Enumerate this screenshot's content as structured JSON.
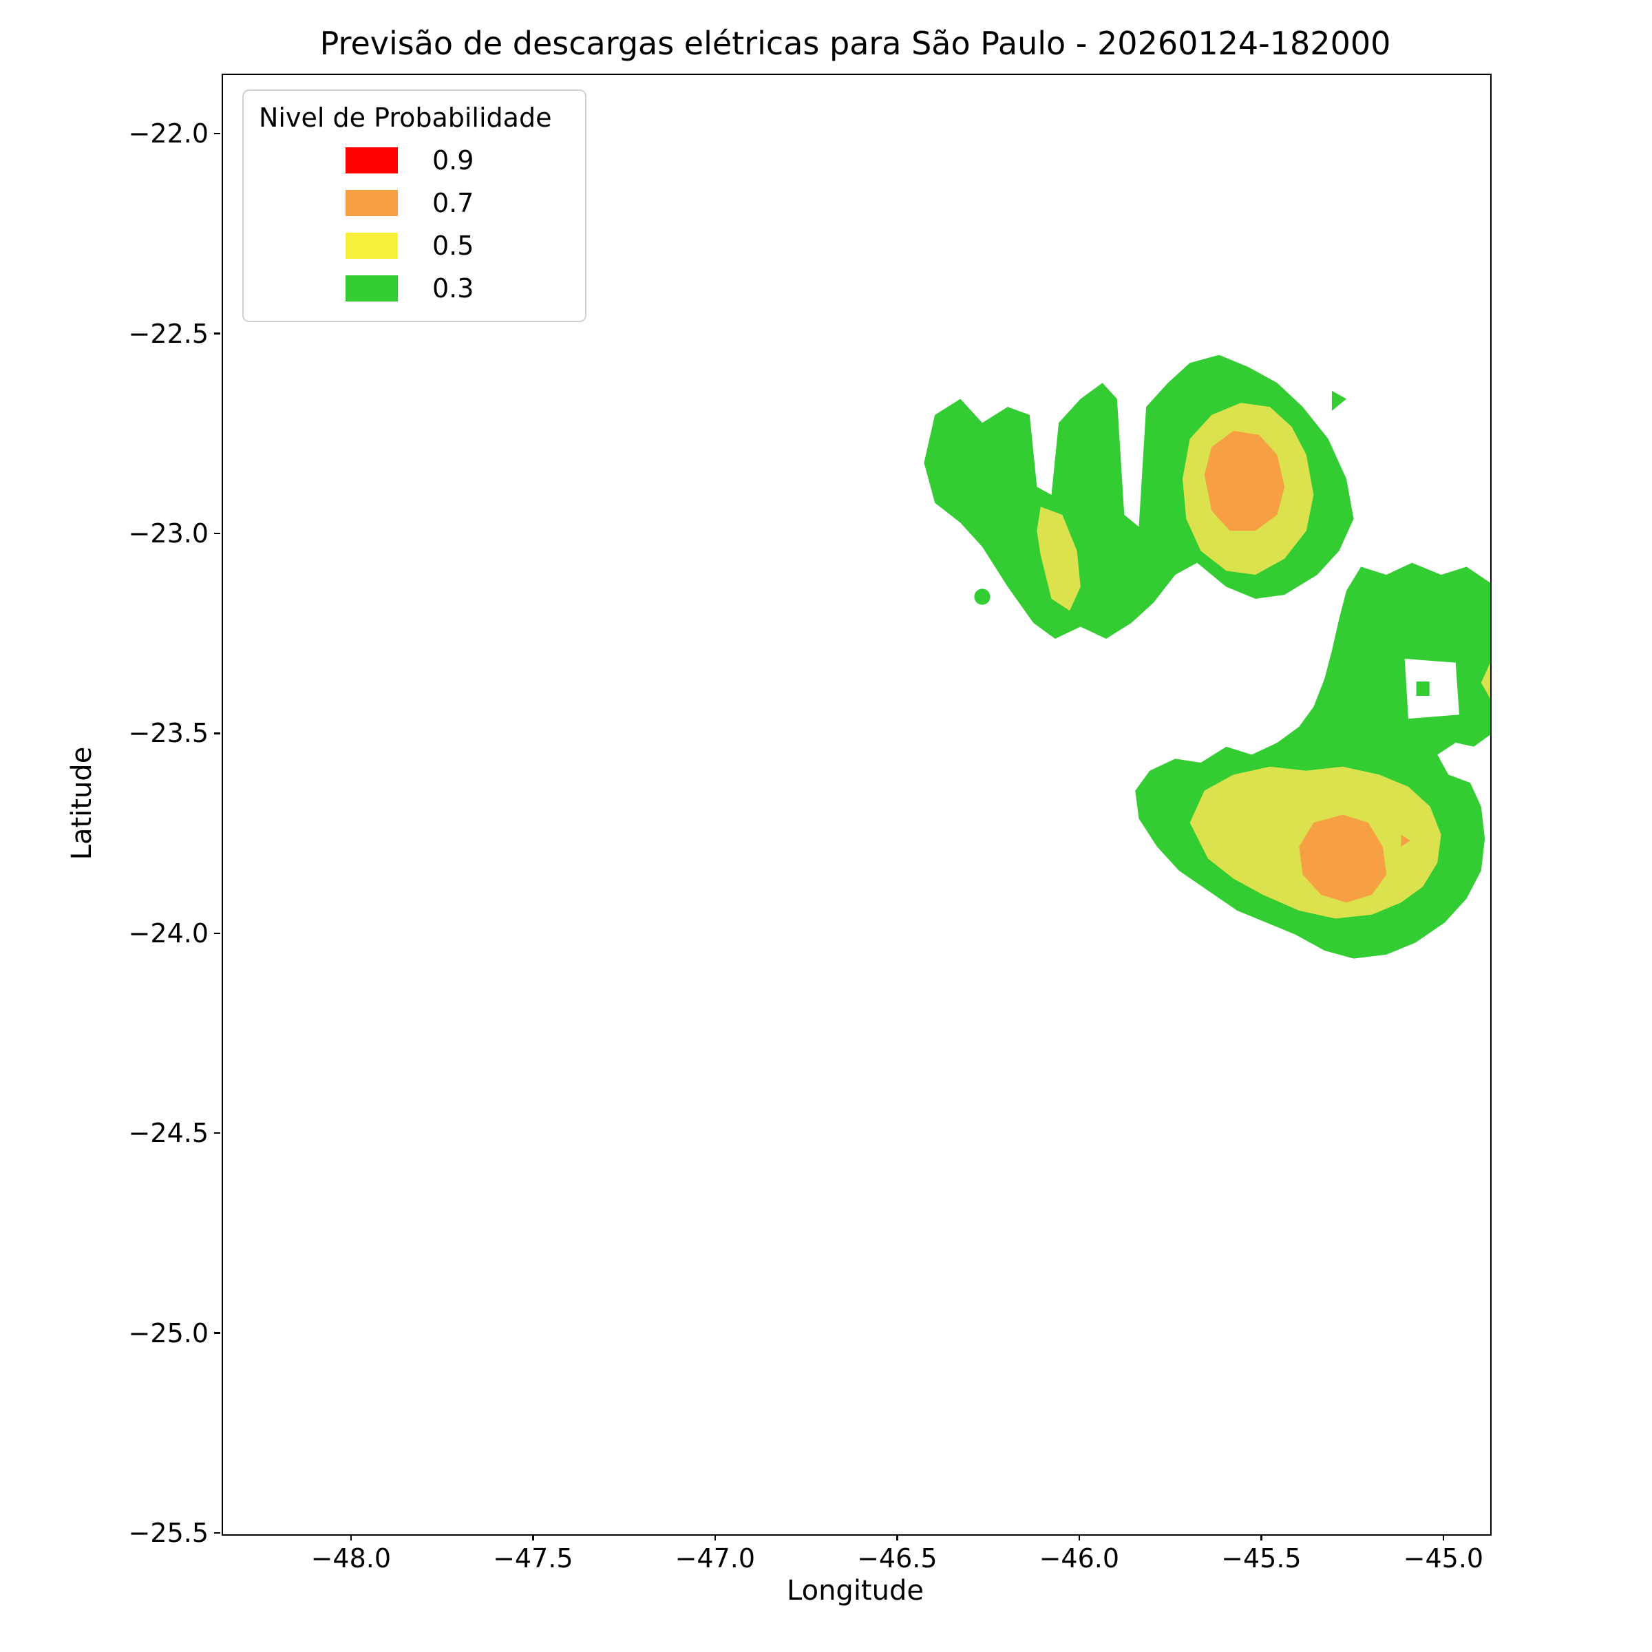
{
  "chart_data": {
    "type": "filled_contour_map",
    "title": "Previsão de descargas elétricas para São Paulo - 20260124-182000",
    "xlabel": "Longitude",
    "ylabel": "Latitude",
    "xlim": [
      -48.355,
      -44.875
    ],
    "ylim": [
      -25.5,
      -21.85
    ],
    "xticks": [
      -48.0,
      -47.5,
      -47.0,
      -46.5,
      -46.0,
      -45.5,
      -45.0
    ],
    "xtick_labels": [
      "−48.0",
      "−47.5",
      "−47.0",
      "−46.5",
      "−46.0",
      "−45.5",
      "−45.0"
    ],
    "yticks": [
      -22.0,
      -22.5,
      -23.0,
      -23.5,
      -24.0,
      -24.5,
      -25.0,
      -25.5
    ],
    "ytick_labels": [
      "−22.0",
      "−22.5",
      "−23.0",
      "−23.5",
      "−24.0",
      "−24.5",
      "−25.0",
      "−25.5"
    ],
    "grid": false,
    "levels": [
      0.3,
      0.5,
      0.7,
      0.9
    ],
    "legend": {
      "title": "Nivel de Probabilidade",
      "position": "upper left",
      "entries": [
        {
          "label": "0.9",
          "color": "#FF0000"
        },
        {
          "label": "0.7",
          "color": "#F7A043"
        },
        {
          "label": "0.5",
          "color": "#F9F03C"
        },
        {
          "label": "0.3",
          "color": "#33CC33"
        }
      ]
    },
    "regions": [
      {
        "name": "north-cluster-green",
        "level": 0.3,
        "color": "#33CC33",
        "rings": [
          [
            [
              -46.43,
              -22.82
            ],
            [
              -46.4,
              -22.7
            ],
            [
              -46.33,
              -22.66
            ],
            [
              -46.27,
              -22.72
            ],
            [
              -46.2,
              -22.68
            ],
            [
              -46.14,
              -22.7
            ],
            [
              -46.12,
              -22.88
            ],
            [
              -46.08,
              -22.9
            ],
            [
              -46.06,
              -22.72
            ],
            [
              -46.0,
              -22.66
            ],
            [
              -45.94,
              -22.62
            ],
            [
              -45.9,
              -22.66
            ],
            [
              -45.88,
              -22.95
            ],
            [
              -45.84,
              -22.98
            ],
            [
              -45.82,
              -22.68
            ],
            [
              -45.76,
              -22.62
            ],
            [
              -45.7,
              -22.57
            ],
            [
              -45.62,
              -22.55
            ],
            [
              -45.54,
              -22.58
            ],
            [
              -45.46,
              -22.62
            ],
            [
              -45.39,
              -22.68
            ],
            [
              -45.32,
              -22.76
            ],
            [
              -45.27,
              -22.86
            ],
            [
              -45.25,
              -22.96
            ],
            [
              -45.29,
              -23.04
            ],
            [
              -45.35,
              -23.1
            ],
            [
              -45.44,
              -23.15
            ],
            [
              -45.52,
              -23.16
            ],
            [
              -45.6,
              -23.13
            ],
            [
              -45.68,
              -23.07
            ],
            [
              -45.74,
              -23.1
            ],
            [
              -45.8,
              -23.17
            ],
            [
              -45.86,
              -23.22
            ],
            [
              -45.93,
              -23.26
            ],
            [
              -46.0,
              -23.23
            ],
            [
              -46.07,
              -23.26
            ],
            [
              -46.13,
              -23.22
            ],
            [
              -46.2,
              -23.13
            ],
            [
              -46.27,
              -23.03
            ],
            [
              -46.33,
              -22.97
            ],
            [
              -46.4,
              -22.92
            ]
          ]
        ]
      },
      {
        "name": "north-green-dot",
        "level": 0.3,
        "color": "#33CC33",
        "type": "circle",
        "center": [
          -46.27,
          -23.155
        ],
        "r_deg": 0.022
      },
      {
        "name": "north-green-triangle",
        "level": 0.3,
        "color": "#33CC33",
        "rings": [
          [
            [
              -45.31,
              -22.64
            ],
            [
              -45.27,
              -22.66
            ],
            [
              -45.31,
              -22.69
            ]
          ]
        ]
      },
      {
        "name": "north-yellow-left-sliver",
        "level": 0.5,
        "color": "#DCE24D",
        "rings": [
          [
            [
              -46.11,
              -22.93
            ],
            [
              -46.05,
              -22.95
            ],
            [
              -46.01,
              -23.04
            ],
            [
              -46.0,
              -23.13
            ],
            [
              -46.03,
              -23.19
            ],
            [
              -46.08,
              -23.16
            ],
            [
              -46.11,
              -23.05
            ],
            [
              -46.12,
              -22.99
            ]
          ]
        ]
      },
      {
        "name": "north-yellow-main",
        "level": 0.5,
        "color": "#DCE24D",
        "rings": [
          [
            [
              -45.72,
              -22.86
            ],
            [
              -45.7,
              -22.76
            ],
            [
              -45.64,
              -22.7
            ],
            [
              -45.56,
              -22.67
            ],
            [
              -45.48,
              -22.68
            ],
            [
              -45.42,
              -22.73
            ],
            [
              -45.38,
              -22.8
            ],
            [
              -45.36,
              -22.9
            ],
            [
              -45.38,
              -22.99
            ],
            [
              -45.44,
              -23.06
            ],
            [
              -45.52,
              -23.1
            ],
            [
              -45.6,
              -23.09
            ],
            [
              -45.67,
              -23.04
            ],
            [
              -45.71,
              -22.96
            ]
          ]
        ]
      },
      {
        "name": "north-orange-core",
        "level": 0.7,
        "color": "#F7A043",
        "rings": [
          [
            [
              -45.66,
              -22.85
            ],
            [
              -45.64,
              -22.78
            ],
            [
              -45.58,
              -22.74
            ],
            [
              -45.51,
              -22.75
            ],
            [
              -45.46,
              -22.8
            ],
            [
              -45.44,
              -22.88
            ],
            [
              -45.46,
              -22.95
            ],
            [
              -45.52,
              -22.99
            ],
            [
              -45.59,
              -22.99
            ],
            [
              -45.64,
              -22.94
            ]
          ]
        ]
      },
      {
        "name": "south-cluster-green",
        "level": 0.3,
        "color": "#33CC33",
        "rings": [
          [
            [
              -45.27,
              -23.14
            ],
            [
              -45.23,
              -23.08
            ],
            [
              -45.16,
              -23.1
            ],
            [
              -45.09,
              -23.07
            ],
            [
              -45.01,
              -23.1
            ],
            [
              -44.94,
              -23.08
            ],
            [
              -44.875,
              -23.12
            ],
            [
              -44.875,
              -23.5
            ],
            [
              -44.92,
              -23.53
            ],
            [
              -44.97,
              -23.52
            ],
            [
              -45.02,
              -23.55
            ],
            [
              -44.99,
              -23.6
            ],
            [
              -44.93,
              -23.62
            ],
            [
              -44.9,
              -23.68
            ],
            [
              -44.89,
              -23.76
            ],
            [
              -44.9,
              -23.84
            ],
            [
              -44.94,
              -23.91
            ],
            [
              -45.0,
              -23.97
            ],
            [
              -45.08,
              -24.02
            ],
            [
              -45.16,
              -24.05
            ],
            [
              -45.25,
              -24.06
            ],
            [
              -45.33,
              -24.04
            ],
            [
              -45.41,
              -24.0
            ],
            [
              -45.49,
              -23.97
            ],
            [
              -45.57,
              -23.94
            ],
            [
              -45.65,
              -23.89
            ],
            [
              -45.73,
              -23.84
            ],
            [
              -45.79,
              -23.78
            ],
            [
              -45.84,
              -23.71
            ],
            [
              -45.85,
              -23.64
            ],
            [
              -45.81,
              -23.59
            ],
            [
              -45.74,
              -23.56
            ],
            [
              -45.67,
              -23.57
            ],
            [
              -45.6,
              -23.53
            ],
            [
              -45.53,
              -23.55
            ],
            [
              -45.46,
              -23.52
            ],
            [
              -45.4,
              -23.48
            ],
            [
              -45.36,
              -23.43
            ],
            [
              -45.33,
              -23.36
            ],
            [
              -45.31,
              -23.29
            ],
            [
              -45.29,
              -23.21
            ]
          ],
          [
            [
              -45.11,
              -23.31
            ],
            [
              -44.97,
              -23.32
            ],
            [
              -44.96,
              -23.45
            ],
            [
              -45.1,
              -23.46
            ]
          ]
        ]
      },
      {
        "name": "south-green-square",
        "level": 0.3,
        "color": "#33CC33",
        "rings": [
          [
            [
              -45.078,
              -23.367
            ],
            [
              -45.042,
              -23.367
            ],
            [
              -45.042,
              -23.403
            ],
            [
              -45.078,
              -23.403
            ]
          ]
        ]
      },
      {
        "name": "south-yellow-main",
        "level": 0.5,
        "color": "#DCE24D",
        "rings": [
          [
            [
              -45.7,
              -23.72
            ],
            [
              -45.66,
              -23.64
            ],
            [
              -45.58,
              -23.6
            ],
            [
              -45.48,
              -23.58
            ],
            [
              -45.38,
              -23.59
            ],
            [
              -45.28,
              -23.58
            ],
            [
              -45.18,
              -23.6
            ],
            [
              -45.1,
              -23.63
            ],
            [
              -45.04,
              -23.68
            ],
            [
              -45.01,
              -23.75
            ],
            [
              -45.02,
              -23.82
            ],
            [
              -45.06,
              -23.88
            ],
            [
              -45.12,
              -23.92
            ],
            [
              -45.2,
              -23.95
            ],
            [
              -45.3,
              -23.96
            ],
            [
              -45.4,
              -23.94
            ],
            [
              -45.5,
              -23.9
            ],
            [
              -45.58,
              -23.86
            ],
            [
              -45.65,
              -23.81
            ]
          ]
        ]
      },
      {
        "name": "south-yellow-edge-sliver",
        "level": 0.5,
        "color": "#DCE24D",
        "rings": [
          [
            [
              -44.875,
              -23.32
            ],
            [
              -44.9,
              -23.37
            ],
            [
              -44.875,
              -23.41
            ]
          ]
        ]
      },
      {
        "name": "south-orange-core",
        "level": 0.7,
        "color": "#F7A043",
        "rings": [
          [
            [
              -45.4,
              -23.78
            ],
            [
              -45.36,
              -23.72
            ],
            [
              -45.28,
              -23.7
            ],
            [
              -45.21,
              -23.72
            ],
            [
              -45.17,
              -23.78
            ],
            [
              -45.16,
              -23.85
            ],
            [
              -45.2,
              -23.9
            ],
            [
              -45.27,
              -23.92
            ],
            [
              -45.34,
              -23.9
            ],
            [
              -45.39,
              -23.85
            ]
          ]
        ]
      },
      {
        "name": "south-orange-speck",
        "level": 0.7,
        "color": "#F7A043",
        "rings": [
          [
            [
              -45.12,
              -23.75
            ],
            [
              -45.095,
              -23.765
            ],
            [
              -45.12,
              -23.78
            ]
          ]
        ]
      }
    ]
  }
}
